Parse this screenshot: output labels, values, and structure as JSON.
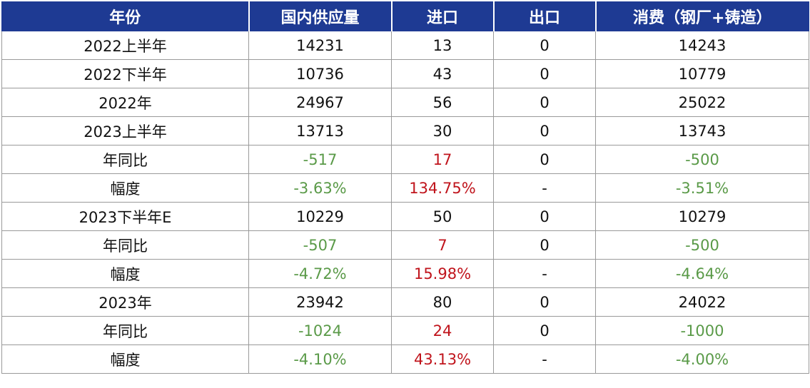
{
  "table": {
    "headers": [
      "年份",
      "国内供应量",
      "进口",
      "出口",
      "消费（钢厂+铸造）"
    ],
    "rows": [
      [
        "2022上半年",
        "14231",
        "13",
        "0",
        "14243"
      ],
      [
        "2022下半年",
        "10736",
        "43",
        "0",
        "10779"
      ],
      [
        "2022年",
        "24967",
        "56",
        "0",
        "25022"
      ],
      [
        "2023上半年",
        "13713",
        "30",
        "0",
        "13743"
      ],
      [
        "年同比",
        "-517",
        "17",
        "0",
        "-500"
      ],
      [
        "幅度",
        "-3.63%",
        "134.75%",
        "-",
        "-3.51%"
      ],
      [
        "2023下半年E",
        "10229",
        "50",
        "0",
        "10279"
      ],
      [
        "年同比",
        "-507",
        "7",
        "0",
        "-500"
      ],
      [
        "幅度",
        "-4.72%",
        "15.98%",
        "-",
        "-4.64%"
      ],
      [
        "2023年",
        "23942",
        "80",
        "0",
        "24022"
      ],
      [
        "年同比",
        "-1024",
        "24",
        "0",
        "-1000"
      ],
      [
        "幅度",
        "-4.10%",
        "43.13%",
        "-",
        "-4.00%"
      ]
    ],
    "colors": {
      "header_bg": "#1e3a93",
      "header_text": "#ffffff",
      "negative": "#5a9a48",
      "positive_change": "#c0141c",
      "text": "#111111",
      "border": "#9a9a9a"
    }
  }
}
